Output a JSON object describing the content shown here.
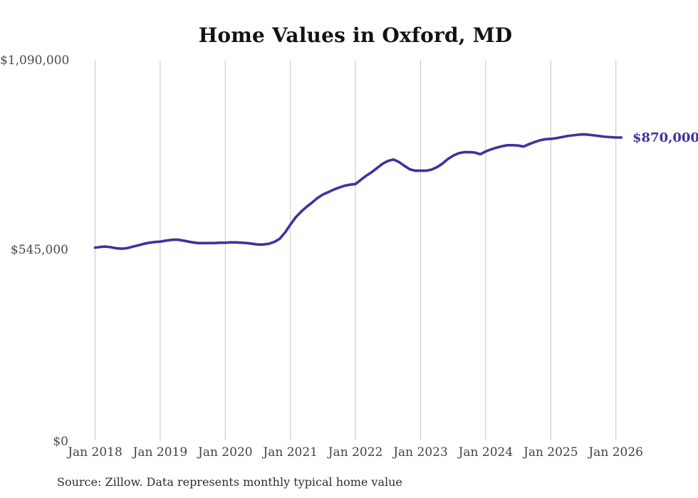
{
  "title": "Home Values in Oxford, MD",
  "source_note": "Source: Zillow. Data represents monthly typical home value",
  "colors": {
    "line": "#3a34a0",
    "end_label": "#3a34a0",
    "grid": "#c4c4c4",
    "axis_text": "#424242",
    "title_text": "#131313",
    "background": "#ffffff"
  },
  "chart_data": {
    "type": "line",
    "title": "Home Values in Oxford, MD",
    "xlabel": "",
    "ylabel": "",
    "ylim": [
      0,
      1090000
    ],
    "grid": "vertical-only",
    "legend": "none",
    "y_tick_labels": [
      "$0",
      "$545,000",
      "$1,090,000"
    ],
    "y_tick_values": [
      0,
      545000,
      1090000
    ],
    "x_tick_labels": [
      "Jan 2018",
      "Jan 2019",
      "Jan 2020",
      "Jan 2021",
      "Jan 2022",
      "Jan 2023",
      "Jan 2024",
      "Jan 2025",
      "Jan 2026"
    ],
    "end_annotation": "$870,000",
    "series": [
      {
        "name": "Monthly typical home value",
        "x": [
          "2018-01",
          "2018-02",
          "2018-03",
          "2018-04",
          "2018-05",
          "2018-06",
          "2018-07",
          "2018-08",
          "2018-09",
          "2018-10",
          "2018-11",
          "2018-12",
          "2019-01",
          "2019-02",
          "2019-03",
          "2019-04",
          "2019-05",
          "2019-06",
          "2019-07",
          "2019-08",
          "2019-09",
          "2019-10",
          "2019-11",
          "2019-12",
          "2020-01",
          "2020-02",
          "2020-03",
          "2020-04",
          "2020-05",
          "2020-06",
          "2020-07",
          "2020-08",
          "2020-09",
          "2020-10",
          "2020-11",
          "2020-12",
          "2021-01",
          "2021-02",
          "2021-03",
          "2021-04",
          "2021-05",
          "2021-06",
          "2021-07",
          "2021-08",
          "2021-09",
          "2021-10",
          "2021-11",
          "2021-12",
          "2022-01",
          "2022-02",
          "2022-03",
          "2022-04",
          "2022-05",
          "2022-06",
          "2022-07",
          "2022-08",
          "2022-09",
          "2022-10",
          "2022-11",
          "2022-12",
          "2023-01",
          "2023-02",
          "2023-03",
          "2023-04",
          "2023-05",
          "2023-06",
          "2023-07",
          "2023-08",
          "2023-09",
          "2023-10",
          "2023-11",
          "2023-12",
          "2024-01",
          "2024-02",
          "2024-03",
          "2024-04",
          "2024-05",
          "2024-06",
          "2024-07",
          "2024-08",
          "2024-09",
          "2024-10",
          "2024-11",
          "2024-12",
          "2025-01",
          "2025-02",
          "2025-03",
          "2025-04",
          "2025-05",
          "2025-06",
          "2025-07",
          "2025-08",
          "2025-09",
          "2025-10",
          "2025-11",
          "2025-12",
          "2026-01",
          "2026-02"
        ],
        "values": [
          555000,
          557000,
          558000,
          556000,
          553000,
          552000,
          554000,
          558000,
          562000,
          566000,
          569000,
          571000,
          572000,
          575000,
          577000,
          578000,
          576000,
          573000,
          570000,
          568000,
          568000,
          568000,
          568000,
          569000,
          569000,
          570000,
          570000,
          569000,
          568000,
          566000,
          564000,
          564000,
          566000,
          571000,
          580000,
          598000,
          621000,
          642000,
          658000,
          672000,
          684000,
          697000,
          707000,
          714000,
          721000,
          727000,
          732000,
          735000,
          737000,
          749000,
          761000,
          771000,
          783000,
          795000,
          803000,
          807000,
          800000,
          789000,
          779000,
          775000,
          775000,
          775000,
          778000,
          785000,
          795000,
          808000,
          818000,
          825000,
          828000,
          828000,
          827000,
          822000,
          830000,
          836000,
          841000,
          845000,
          848000,
          848000,
          847000,
          844000,
          851000,
          857000,
          862000,
          865000,
          866000,
          868000,
          871000,
          874000,
          876000,
          878000,
          879000,
          878000,
          876000,
          874000,
          872000,
          871000,
          870000,
          870000
        ]
      }
    ]
  }
}
